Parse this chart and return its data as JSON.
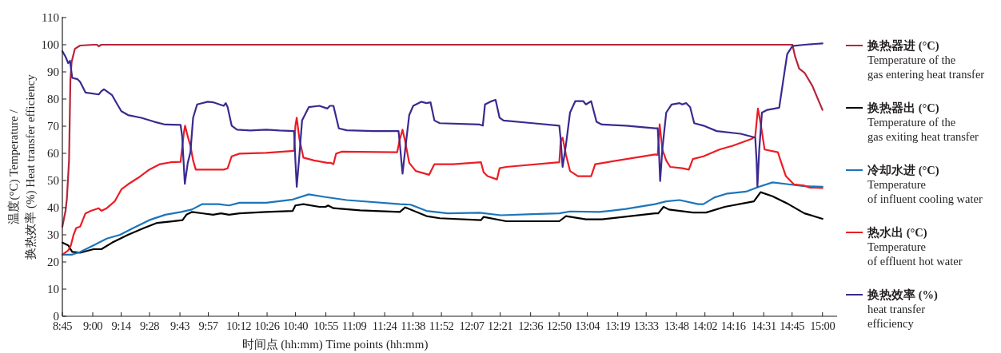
{
  "chart_data": {
    "type": "line",
    "xlabel": "时间点 (hh:mm) Time points (hh:mm)",
    "ylabel": "温度(°C) Temperature /\n换热效率 (%) Heat transfer efficiency",
    "xlim": [
      8.75,
      15.12
    ],
    "ylim": [
      0,
      110
    ],
    "yticks": [
      0,
      10,
      20,
      30,
      40,
      50,
      60,
      70,
      80,
      90,
      100,
      110
    ],
    "xticks": [
      {
        "value": 8.75,
        "label": "8:45"
      },
      {
        "value": 9,
        "label": "9:00"
      },
      {
        "value": 9.2333,
        "label": "9:14"
      },
      {
        "value": 9.4667,
        "label": "9:28"
      },
      {
        "value": 9.7167,
        "label": "9:43"
      },
      {
        "value": 9.95,
        "label": "9:57"
      },
      {
        "value": 10.2,
        "label": "10:12"
      },
      {
        "value": 10.4333,
        "label": "10:26"
      },
      {
        "value": 10.6667,
        "label": "10:40"
      },
      {
        "value": 10.9167,
        "label": "10:55"
      },
      {
        "value": 11.15,
        "label": "11:09"
      },
      {
        "value": 11.4,
        "label": "11:24"
      },
      {
        "value": 11.6333,
        "label": "11:38"
      },
      {
        "value": 11.8667,
        "label": "11:52"
      },
      {
        "value": 12.1167,
        "label": "12:07"
      },
      {
        "value": 12.35,
        "label": "12:21"
      },
      {
        "value": 12.6,
        "label": "12:36"
      },
      {
        "value": 12.8333,
        "label": "12:50"
      },
      {
        "value": 13.0667,
        "label": "13:04"
      },
      {
        "value": 13.3167,
        "label": "13:19"
      },
      {
        "value": 13.55,
        "label": "13:33"
      },
      {
        "value": 13.8,
        "label": "13:48"
      },
      {
        "value": 14.0333,
        "label": "14:02"
      },
      {
        "value": 14.2667,
        "label": "14:16"
      },
      {
        "value": 14.5167,
        "label": "14:31"
      },
      {
        "value": 14.75,
        "label": "14:45"
      },
      {
        "value": 15,
        "label": "15:00"
      }
    ],
    "legend": "right",
    "grid": false,
    "series": [
      {
        "name": "换热器进 (°C)\nTemperature of the\ngas entering heat transfer",
        "color": "#b5263a",
        "x": [
          8.75,
          8.776,
          8.787,
          8.805,
          8.816,
          8.826,
          8.853,
          8.896,
          9.006,
          9.035,
          9.049,
          9.07,
          14.753,
          14.775,
          14.808,
          14.852,
          14.917,
          15.0
        ],
        "values": [
          33,
          38.8,
          43.2,
          57.4,
          86.8,
          93.6,
          98.5,
          99.7,
          100,
          100,
          99.4,
          100,
          100,
          95.6,
          91.2,
          89.7,
          84.8,
          76.0
        ]
      },
      {
        "name": "换热器出 (°C)\nTemperature of the\ngas exiting heat transfer",
        "color": "#000000",
        "x": [
          8.75,
          8.798,
          8.831,
          8.896,
          9.006,
          9.071,
          9.159,
          9.29,
          9.421,
          9.53,
          9.639,
          9.738,
          9.77,
          9.814,
          9.989,
          10.054,
          10.12,
          10.207,
          10.426,
          10.644,
          10.666,
          10.732,
          10.863,
          10.914,
          10.935,
          10.979,
          11.198,
          11.525,
          11.569,
          11.744,
          11.853,
          12.192,
          12.214,
          12.399,
          12.836,
          12.891,
          13.055,
          13.186,
          13.623,
          13.65,
          13.693,
          13.737,
          13.934,
          14.043,
          14.196,
          14.436,
          14.491,
          14.589,
          14.72,
          14.851,
          15.0
        ],
        "values": [
          27.1,
          26.1,
          23.7,
          23.4,
          24.7,
          24.7,
          27.1,
          30.0,
          32.5,
          34.4,
          34.9,
          35.4,
          37.4,
          38.4,
          37.4,
          37.9,
          37.4,
          37.9,
          38.4,
          38.8,
          40.8,
          41.3,
          40.3,
          40.3,
          40.8,
          39.8,
          39.0,
          38.4,
          40.1,
          36.9,
          36.1,
          35.4,
          36.6,
          35.0,
          35.0,
          36.9,
          35.7,
          35.7,
          37.9,
          37.9,
          40.3,
          39.3,
          38.2,
          38.2,
          40.3,
          42.3,
          45.7,
          44.2,
          41.3,
          37.9,
          35.9
        ]
      },
      {
        "name": "冷却水进 (°C)\nTemperature\nof influent cooling water",
        "color": "#1b75bc",
        "x": [
          8.75,
          8.831,
          8.896,
          9.006,
          9.115,
          9.224,
          9.333,
          9.464,
          9.596,
          9.727,
          9.814,
          9.901,
          10.033,
          10.12,
          10.207,
          10.426,
          10.644,
          10.776,
          10.914,
          11.088,
          11.525,
          11.613,
          11.744,
          11.919,
          12.181,
          12.356,
          12.618,
          12.836,
          12.924,
          13.164,
          13.383,
          13.623,
          13.715,
          13.825,
          13.977,
          14.021,
          14.109,
          14.218,
          14.371,
          14.48,
          14.589,
          14.72,
          14.851,
          15.0
        ],
        "values": [
          22.7,
          22.7,
          23.7,
          26.1,
          28.6,
          30.0,
          32.5,
          35.4,
          37.4,
          38.4,
          39.3,
          41.3,
          41.3,
          40.8,
          41.8,
          41.8,
          43.0,
          44.9,
          43.9,
          42.8,
          41.3,
          41.1,
          38.8,
          37.9,
          38.1,
          37.2,
          37.6,
          37.9,
          38.6,
          38.4,
          39.5,
          41.3,
          42.3,
          42.8,
          41.3,
          41.3,
          43.7,
          45.2,
          45.9,
          47.7,
          49.3,
          48.6,
          47.9,
          47.7
        ]
      },
      {
        "name": "热水出 (°C)\nTemperature\nof effluent hot water",
        "color": "#ed1c24",
        "x": [
          8.75,
          8.798,
          8.82,
          8.842,
          8.864,
          8.896,
          8.94,
          8.984,
          9.049,
          9.071,
          9.115,
          9.18,
          9.235,
          9.29,
          9.377,
          9.464,
          9.552,
          9.639,
          9.722,
          9.748,
          9.759,
          9.781,
          9.803,
          9.825,
          9.847,
          9.945,
          10.076,
          10.109,
          10.142,
          10.207,
          10.426,
          10.655,
          10.666,
          10.677,
          10.699,
          10.732,
          10.819,
          10.928,
          10.957,
          10.979,
          11.001,
          11.045,
          11.503,
          11.525,
          11.547,
          11.569,
          11.602,
          11.656,
          11.766,
          11.809,
          11.962,
          12.192,
          12.214,
          12.246,
          12.323,
          12.345,
          12.399,
          12.836,
          12.847,
          12.863,
          12.891,
          12.924,
          12.989,
          13.098,
          13.131,
          13.623,
          13.645,
          13.661,
          13.683,
          13.715,
          13.748,
          13.846,
          13.901,
          13.934,
          14.021,
          14.152,
          14.262,
          14.415,
          14.447,
          14.469,
          14.491,
          14.524,
          14.633,
          14.655,
          14.699,
          14.764,
          14.851,
          14.895,
          15.0
        ],
        "values": [
          22.7,
          24.2,
          26.1,
          30.0,
          32.5,
          33.0,
          37.9,
          38.8,
          39.8,
          38.8,
          39.8,
          42.3,
          46.7,
          48.6,
          51.1,
          54.0,
          56.0,
          56.7,
          56.9,
          67.2,
          70.2,
          66.2,
          62.8,
          57.4,
          54.0,
          54.0,
          54.0,
          54.5,
          58.9,
          59.9,
          60.2,
          60.9,
          70.2,
          73.1,
          65.3,
          58.4,
          57.4,
          56.5,
          56.5,
          56.0,
          59.9,
          60.6,
          60.4,
          65.3,
          68.7,
          64.3,
          56.5,
          53.5,
          52.1,
          56.0,
          56.0,
          56.7,
          53.0,
          51.6,
          50.4,
          54.5,
          55.0,
          56.7,
          64.3,
          65.8,
          59.4,
          53.5,
          51.6,
          51.6,
          56.0,
          59.6,
          59.4,
          70.7,
          61.4,
          57.4,
          55.0,
          54.5,
          54.0,
          57.9,
          58.9,
          61.4,
          62.8,
          65.3,
          66.2,
          76.5,
          71.1,
          61.4,
          60.4,
          57.4,
          51.6,
          48.6,
          48.1,
          47.4,
          47.2
        ]
      },
      {
        "name": "换热效率 (%)\nheat transfer\nefficiency",
        "color": "#3a2a8f",
        "x": [
          8.75,
          8.776,
          8.798,
          8.813,
          8.831,
          8.875,
          8.896,
          8.94,
          9.049,
          9.071,
          9.093,
          9.159,
          9.202,
          9.235,
          9.29,
          9.399,
          9.508,
          9.596,
          9.722,
          9.735,
          9.757,
          9.781,
          9.803,
          9.825,
          9.858,
          9.945,
          9.989,
          10.076,
          10.094,
          10.109,
          10.142,
          10.186,
          10.295,
          10.426,
          10.535,
          10.655,
          10.666,
          10.677,
          10.699,
          10.721,
          10.776,
          10.863,
          10.928,
          10.95,
          10.979,
          11.023,
          11.088,
          11.307,
          11.514,
          11.525,
          11.547,
          11.569,
          11.602,
          11.635,
          11.7,
          11.744,
          11.777,
          11.809,
          11.853,
          12.181,
          12.207,
          12.225,
          12.268,
          12.312,
          12.345,
          12.377,
          12.618,
          12.836,
          12.847,
          12.863,
          12.891,
          12.924,
          12.967,
          13.033,
          13.055,
          13.098,
          13.142,
          13.186,
          13.383,
          13.623,
          13.645,
          13.654,
          13.665,
          13.683,
          13.715,
          13.759,
          13.825,
          13.846,
          13.879,
          13.912,
          13.945,
          14.021,
          14.13,
          14.327,
          14.447,
          14.458,
          14.465,
          14.48,
          14.502,
          14.546,
          14.644,
          14.677,
          14.71,
          14.753,
          14.851,
          15.0
        ],
        "values": [
          97.6,
          95.6,
          93.2,
          94.1,
          87.8,
          87.3,
          86.3,
          82.4,
          81.7,
          82.9,
          83.6,
          81.4,
          78.0,
          75.5,
          74.1,
          73.1,
          71.6,
          70.6,
          70.5,
          66.2,
          48.8,
          56.5,
          60.4,
          73.1,
          78.0,
          79.0,
          78.8,
          77.5,
          78.5,
          77.0,
          70.2,
          68.7,
          68.4,
          68.7,
          68.4,
          68.2,
          57.4,
          47.7,
          59.4,
          72.1,
          77.0,
          77.5,
          76.5,
          77.5,
          77.5,
          69.2,
          68.5,
          68.2,
          68.2,
          63.3,
          52.5,
          61.4,
          74.1,
          77.5,
          79.0,
          78.5,
          78.8,
          72.1,
          71.1,
          70.6,
          70.2,
          78.0,
          79.0,
          79.7,
          73.1,
          72.1,
          71.1,
          70.2,
          65.3,
          55.0,
          63.3,
          75.0,
          79.2,
          79.2,
          78.0,
          79.2,
          71.6,
          70.6,
          70.2,
          69.2,
          69.2,
          62.3,
          49.8,
          61.4,
          75.0,
          78.0,
          78.5,
          78.0,
          78.5,
          77.0,
          71.1,
          70.2,
          68.2,
          67.2,
          65.8,
          57.4,
          47.7,
          61.4,
          75.0,
          76.0,
          76.8,
          86.8,
          96.6,
          99.5,
          100.0,
          100.5
        ]
      }
    ]
  }
}
